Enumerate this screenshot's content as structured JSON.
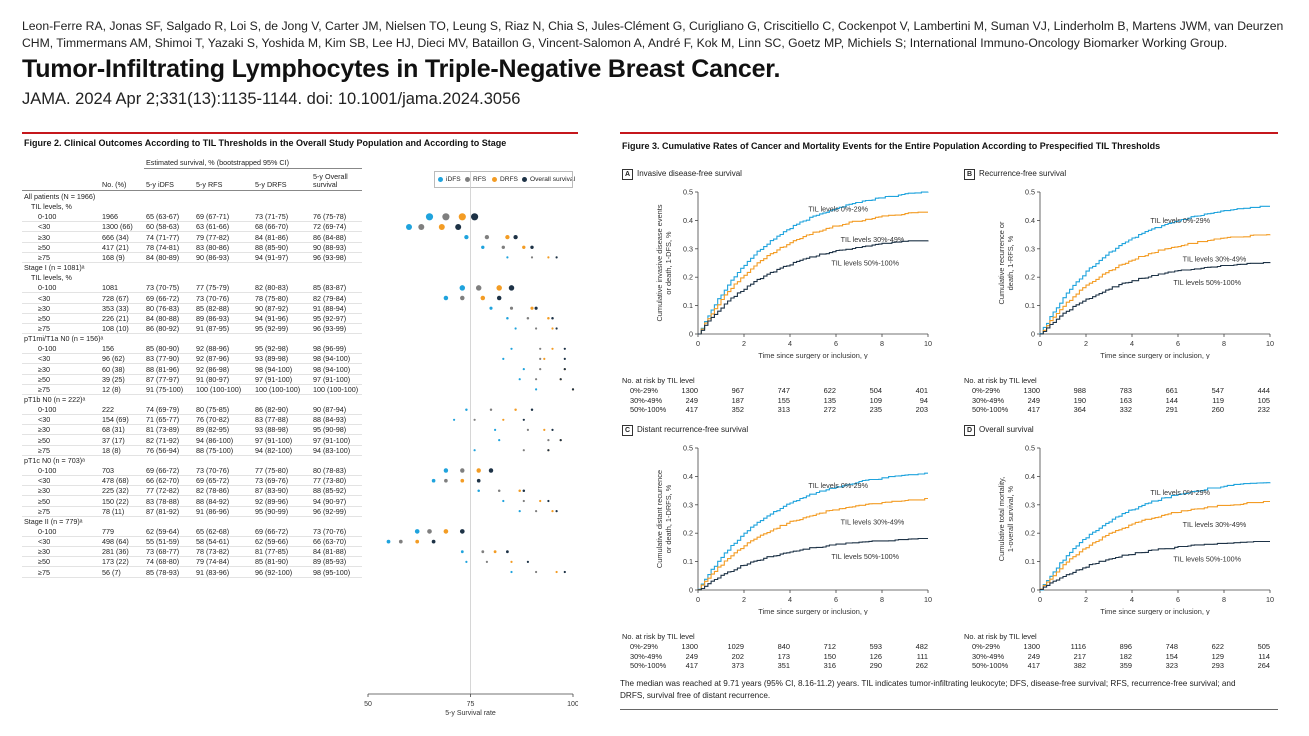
{
  "header": {
    "authors": "Leon-Ferre RA, Jonas SF, Salgado R, Loi S, de Jong V, Carter JM, Nielsen TO, Leung S, Riaz N, Chia S, Jules-Clément G, Curigliano G, Criscitiello C, Cockenpot V, Lambertini M, Suman VJ, Linderholm B, Martens JWM, van Deurzen CHM, Timmermans AM, Shimoi T, Yazaki S, Yoshida M, Kim SB, Lee HJ, Dieci MV, Bataillon G, Vincent-Salomon A, André F, Kok M, Linn SC, Goetz MP, Michiels S; International Immuno-Oncology Biomarker Working Group.",
    "title": "Tumor-Infiltrating Lymphocytes in Triple-Negative Breast Cancer.",
    "citation": "JAMA. 2024 Apr 2;331(13):1135-1144. doi: 10.1001/jama.2024.3056"
  },
  "fig2": {
    "title": "Figure 2. Clinical Outcomes According to TIL Thresholds in the Overall Study Population and According to Stage",
    "est_header": "Estimated survival, % (bootstrapped 95% CI)",
    "col_no": "No. (%)",
    "col_idfs": "5-y iDFS",
    "col_rfs": "5-y RFS",
    "col_drfs": "5-y DRFS",
    "col_os": "5-y Overall",
    "col_os2": "survival",
    "legend": [
      "iDFS",
      "RFS",
      "DRFS",
      "Overall survival"
    ],
    "colors": {
      "idfs": "#1fa3dd",
      "rfs": "#7f7f7f",
      "drfs": "#f39c24",
      "os": "#1d3246"
    },
    "xaxis": {
      "label": "5-y Survival rate",
      "ticks": [
        "50",
        "75",
        "100"
      ],
      "range": [
        50,
        100
      ]
    },
    "groups": [
      {
        "header": "All patients (N = 1966)",
        "sub": "TIL levels, %",
        "rows": [
          {
            "label": "0-100",
            "no": "1966",
            "idfs": "65 (63-67)",
            "rfs": "69 (67-71)",
            "drfs": "73 (71-75)",
            "os": "76 (75-78)",
            "v": [
              65,
              69,
              73,
              76
            ]
          },
          {
            "label": "<30",
            "no": "1300 (66)",
            "idfs": "60 (58-63)",
            "rfs": "63 (61-66)",
            "drfs": "68 (66-70)",
            "os": "72 (69-74)",
            "v": [
              60,
              63,
              68,
              72
            ]
          },
          {
            "label": "≥30",
            "no": "666 (34)",
            "idfs": "74 (71-77)",
            "rfs": "79 (77-82)",
            "drfs": "84 (81-86)",
            "os": "86 (84-88)",
            "v": [
              74,
              79,
              84,
              86
            ]
          },
          {
            "label": "≥50",
            "no": "417 (21)",
            "idfs": "78 (74-81)",
            "rfs": "83 (80-86)",
            "drfs": "88 (85-90)",
            "os": "90 (88-93)",
            "v": [
              78,
              83,
              88,
              90
            ]
          },
          {
            "label": "≥75",
            "no": "168 (9)",
            "idfs": "84 (80-89)",
            "rfs": "90 (86-93)",
            "drfs": "94 (91-97)",
            "os": "96 (93-98)",
            "v": [
              84,
              90,
              94,
              96
            ]
          }
        ]
      },
      {
        "header": "Stage I (n = 1081)ᵃ",
        "sub": "TIL levels, %",
        "rows": [
          {
            "label": "0-100",
            "no": "1081",
            "idfs": "73 (70-75)",
            "rfs": "77 (75-79)",
            "drfs": "82 (80-83)",
            "os": "85 (83-87)",
            "v": [
              73,
              77,
              82,
              85
            ]
          },
          {
            "label": "<30",
            "no": "728 (67)",
            "idfs": "69 (66-72)",
            "rfs": "73 (70-76)",
            "drfs": "78 (75-80)",
            "os": "82 (79-84)",
            "v": [
              69,
              73,
              78,
              82
            ]
          },
          {
            "label": "≥30",
            "no": "353 (33)",
            "idfs": "80 (76-83)",
            "rfs": "85 (82-88)",
            "drfs": "90 (87-92)",
            "os": "91 (88-94)",
            "v": [
              80,
              85,
              90,
              91
            ]
          },
          {
            "label": "≥50",
            "no": "226 (21)",
            "idfs": "84 (80-88)",
            "rfs": "89 (86-93)",
            "drfs": "94 (91-96)",
            "os": "95 (92-97)",
            "v": [
              84,
              89,
              94,
              95
            ]
          },
          {
            "label": "≥75",
            "no": "108 (10)",
            "idfs": "86 (80-92)",
            "rfs": "91 (87-95)",
            "drfs": "95 (92-99)",
            "os": "96 (93-99)",
            "v": [
              86,
              91,
              95,
              96
            ]
          }
        ]
      },
      {
        "header": "pT1mi/T1a N0 (n = 156)ᵃ",
        "sub": "",
        "rows": [
          {
            "label": "0-100",
            "no": "156",
            "idfs": "85 (80-90)",
            "rfs": "92 (88-96)",
            "drfs": "95 (92-98)",
            "os": "98 (96-99)",
            "v": [
              85,
              92,
              95,
              98
            ]
          },
          {
            "label": "<30",
            "no": "96 (62)",
            "idfs": "83 (77-90)",
            "rfs": "92 (87-96)",
            "drfs": "93 (89-98)",
            "os": "98 (94-100)",
            "v": [
              83,
              92,
              93,
              98
            ]
          },
          {
            "label": "≥30",
            "no": "60 (38)",
            "idfs": "88 (81-96)",
            "rfs": "92 (86-98)",
            "drfs": "98 (94-100)",
            "os": "98 (94-100)",
            "v": [
              88,
              92,
              98,
              98
            ]
          },
          {
            "label": "≥50",
            "no": "39 (25)",
            "idfs": "87 (77-97)",
            "rfs": "91 (80-97)",
            "drfs": "97 (91-100)",
            "os": "97 (91-100)",
            "v": [
              87,
              91,
              97,
              97
            ]
          },
          {
            "label": "≥75",
            "no": "12 (8)",
            "idfs": "91 (75-100)",
            "rfs": "100 (100-100)",
            "drfs": "100 (100-100)",
            "os": "100 (100-100)",
            "v": [
              91,
              100,
              100,
              100
            ]
          }
        ]
      },
      {
        "header": "pT1b N0 (n = 222)ᵃ",
        "sub": "",
        "rows": [
          {
            "label": "0-100",
            "no": "222",
            "idfs": "74 (69-79)",
            "rfs": "80 (75-85)",
            "drfs": "86 (82-90)",
            "os": "90 (87-94)",
            "v": [
              74,
              80,
              86,
              90
            ]
          },
          {
            "label": "<30",
            "no": "154 (69)",
            "idfs": "71 (65-77)",
            "rfs": "76 (70-82)",
            "drfs": "83 (77-88)",
            "os": "88 (84-93)",
            "v": [
              71,
              76,
              83,
              88
            ]
          },
          {
            "label": "≥30",
            "no": "68 (31)",
            "idfs": "81 (73-89)",
            "rfs": "89 (82-95)",
            "drfs": "93 (88-98)",
            "os": "95 (90-98)",
            "v": [
              81,
              89,
              93,
              95
            ]
          },
          {
            "label": "≥50",
            "no": "37 (17)",
            "idfs": "82 (71-92)",
            "rfs": "94 (86-100)",
            "drfs": "97 (91-100)",
            "os": "97 (91-100)",
            "v": [
              82,
              94,
              97,
              97
            ]
          },
          {
            "label": "≥75",
            "no": "18 (8)",
            "idfs": "76 (56-94)",
            "rfs": "88 (75-100)",
            "drfs": "94 (82-100)",
            "os": "94 (83-100)",
            "v": [
              76,
              88,
              94,
              94
            ]
          }
        ]
      },
      {
        "header": "pT1c N0 (n = 703)ᵃ",
        "sub": "",
        "rows": [
          {
            "label": "0-100",
            "no": "703",
            "idfs": "69 (66-72)",
            "rfs": "73 (70-76)",
            "drfs": "77 (75-80)",
            "os": "80 (78-83)",
            "v": [
              69,
              73,
              77,
              80
            ]
          },
          {
            "label": "<30",
            "no": "478 (68)",
            "idfs": "66 (62-70)",
            "rfs": "69 (65-72)",
            "drfs": "73 (69-76)",
            "os": "77 (73-80)",
            "v": [
              66,
              69,
              73,
              77
            ]
          },
          {
            "label": "≥30",
            "no": "225 (32)",
            "idfs": "77 (72-82)",
            "rfs": "82 (78-86)",
            "drfs": "87 (83-90)",
            "os": "88 (85-92)",
            "v": [
              77,
              82,
              87,
              88
            ]
          },
          {
            "label": "≥50",
            "no": "150 (22)",
            "idfs": "83 (78-88)",
            "rfs": "88 (84-92)",
            "drfs": "92 (89-96)",
            "os": "94 (90-97)",
            "v": [
              83,
              88,
              92,
              94
            ]
          },
          {
            "label": "≥75",
            "no": "78 (11)",
            "idfs": "87 (81-92)",
            "rfs": "91 (86-96)",
            "drfs": "95 (90-99)",
            "os": "96 (92-99)",
            "v": [
              87,
              91,
              95,
              96
            ]
          }
        ]
      },
      {
        "header": "Stage II (n = 779)ᵃ",
        "sub": "",
        "rows": [
          {
            "label": "0-100",
            "no": "779",
            "idfs": "62 (59-64)",
            "rfs": "65 (62-68)",
            "drfs": "69 (66-72)",
            "os": "73 (70-76)",
            "v": [
              62,
              65,
              69,
              73
            ]
          },
          {
            "label": "<30",
            "no": "498 (64)",
            "idfs": "55 (51-59)",
            "rfs": "58 (54-61)",
            "drfs": "62 (59-66)",
            "os": "66 (63-70)",
            "v": [
              55,
              58,
              62,
              66
            ]
          },
          {
            "label": "≥30",
            "no": "281 (36)",
            "idfs": "73 (68-77)",
            "rfs": "78 (73-82)",
            "drfs": "81 (77-85)",
            "os": "84 (81-88)",
            "v": [
              73,
              78,
              81,
              84
            ]
          },
          {
            "label": "≥50",
            "no": "173 (22)",
            "idfs": "74 (68-80)",
            "rfs": "79 (74-84)",
            "drfs": "85 (81-90)",
            "os": "89 (85-93)",
            "v": [
              74,
              79,
              85,
              89
            ]
          },
          {
            "label": "≥75",
            "no": "56 (7)",
            "idfs": "85 (78-93)",
            "rfs": "91 (83-96)",
            "drfs": "96 (92-100)",
            "os": "98 (95-100)",
            "v": [
              85,
              91,
              96,
              98
            ]
          }
        ]
      }
    ]
  },
  "fig3": {
    "title": "Figure 3. Cumulative Rates of Cancer and Mortality Events for the Entire Population According to Prespecified TIL Thresholds",
    "footnote": "The median was reached at 9.71 years (95% CI, 8.16-11.2) years. TIL indicates tumor-infiltrating leukocyte; DFS, disease-free survival; RFS, recurrence-free survival; and DRFS, survival free of distant recurrence.",
    "xlabel": "Time since surgery or inclusion, y",
    "risk_header": "No. at risk by TIL level",
    "xticks": [
      "0",
      "2",
      "4",
      "6",
      "8",
      "10"
    ],
    "yticks": [
      "0",
      "0.1",
      "0.2",
      "0.3",
      "0.4",
      "0.5"
    ],
    "series_labels": [
      "TIL levels 0%-29%",
      "TIL levels 30%-49%",
      "TIL levels 50%-100%"
    ],
    "colors": [
      "#1fa3dd",
      "#f39c24",
      "#1d3246"
    ],
    "panels": [
      {
        "letter": "A",
        "title": "Invasive disease-free survival",
        "ylabel1": "Cumulative invasive disease events",
        "ylabel2": "or death, 1-DFS, %",
        "final": [
          0.5,
          0.43,
          0.33
        ],
        "risk": [
          {
            "label": "0%-29%",
            "vals": [
              "1300",
              "967",
              "747",
              "622",
              "504",
              "401"
            ]
          },
          {
            "label": "30%-49%",
            "vals": [
              "249",
              "187",
              "155",
              "135",
              "109",
              "94"
            ]
          },
          {
            "label": "50%-100%",
            "vals": [
              "417",
              "352",
              "313",
              "272",
              "235",
              "203"
            ]
          }
        ]
      },
      {
        "letter": "B",
        "title": "Recurrence-free survival",
        "ylabel1": "Cumulative recurrence or",
        "ylabel2": "death, 1-RFS, %",
        "final": [
          0.45,
          0.35,
          0.25
        ],
        "risk": [
          {
            "label": "0%-29%",
            "vals": [
              "1300",
              "988",
              "783",
              "661",
              "547",
              "444"
            ]
          },
          {
            "label": "30%-49%",
            "vals": [
              "249",
              "190",
              "163",
              "144",
              "119",
              "105"
            ]
          },
          {
            "label": "50%-100%",
            "vals": [
              "417",
              "364",
              "332",
              "291",
              "260",
              "232"
            ]
          }
        ]
      },
      {
        "letter": "C",
        "title": "Distant recurrence-free survival",
        "ylabel1": "Cumulative distant recurrence",
        "ylabel2": "or death, 1-DRFS, %",
        "final": [
          0.41,
          0.32,
          0.18
        ],
        "risk": [
          {
            "label": "0%-29%",
            "vals": [
              "1300",
              "1029",
              "840",
              "712",
              "593",
              "482"
            ]
          },
          {
            "label": "30%-49%",
            "vals": [
              "249",
              "202",
              "173",
              "150",
              "126",
              "111"
            ]
          },
          {
            "label": "50%-100%",
            "vals": [
              "417",
              "373",
              "351",
              "316",
              "290",
              "262"
            ]
          }
        ]
      },
      {
        "letter": "D",
        "title": "Overall survival",
        "ylabel1": "Cumulative total mortality,",
        "ylabel2": "1-overall survival, %",
        "final": [
          0.38,
          0.31,
          0.17
        ],
        "risk": [
          {
            "label": "0%-29%",
            "vals": [
              "1300",
              "1116",
              "896",
              "748",
              "622",
              "505"
            ]
          },
          {
            "label": "30%-49%",
            "vals": [
              "249",
              "217",
              "182",
              "154",
              "129",
              "114"
            ]
          },
          {
            "label": "50%-100%",
            "vals": [
              "417",
              "382",
              "359",
              "323",
              "293",
              "264"
            ]
          }
        ]
      }
    ]
  },
  "chart_data": [
    {
      "type": "scatter",
      "title": "Figure 2. Clinical Outcomes According to TIL Thresholds in the Overall Study Population and According to Stage",
      "xlabel": "5-y Survival rate",
      "xlim": [
        50,
        100
      ],
      "series_names": [
        "iDFS",
        "RFS",
        "DRFS",
        "Overall survival"
      ],
      "note": "per-row values in fig2.groups[].rows[].v"
    },
    {
      "type": "line",
      "title": "Figure 3. Cumulative Rates of Cancer and Mortality Events for the Entire Population According to Prespecified TIL Thresholds",
      "xlabel": "Time since surgery or inclusion, y",
      "xlim": [
        0,
        10
      ],
      "ylim": [
        0,
        0.5
      ],
      "panels": [
        {
          "title": "Invasive disease-free survival",
          "series": [
            {
              "name": "TIL levels 0%-29%",
              "final_value": 0.5
            },
            {
              "name": "TIL levels 30%-49%",
              "final_value": 0.43
            },
            {
              "name": "TIL levels 50%-100%",
              "final_value": 0.33
            }
          ]
        },
        {
          "title": "Recurrence-free survival",
          "series": [
            {
              "name": "TIL levels 0%-29%",
              "final_value": 0.45
            },
            {
              "name": "TIL levels 30%-49%",
              "final_value": 0.35
            },
            {
              "name": "TIL levels 50%-100%",
              "final_value": 0.25
            }
          ]
        },
        {
          "title": "Distant recurrence-free survival",
          "series": [
            {
              "name": "TIL levels 0%-29%",
              "final_value": 0.41
            },
            {
              "name": "TIL levels 30%-49%",
              "final_value": 0.32
            },
            {
              "name": "TIL levels 50%-100%",
              "final_value": 0.18
            }
          ]
        },
        {
          "title": "Overall survival",
          "series": [
            {
              "name": "TIL levels 0%-29%",
              "final_value": 0.38
            },
            {
              "name": "TIL levels 30%-49%",
              "final_value": 0.31
            },
            {
              "name": "TIL levels 50%-100%",
              "final_value": 0.17
            }
          ]
        }
      ]
    }
  ]
}
